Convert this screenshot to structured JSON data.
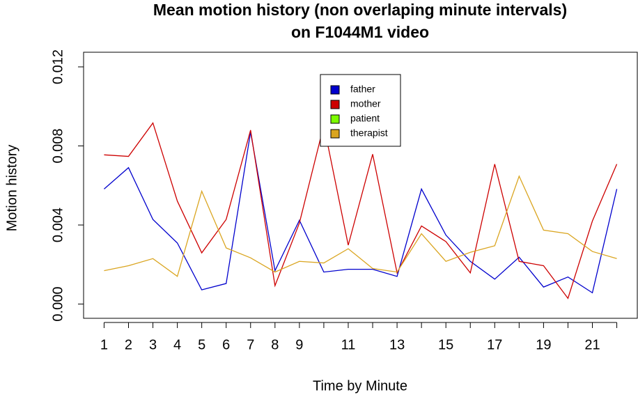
{
  "chart_data": {
    "type": "line",
    "title": [
      "Mean motion history (non overlaping minute intervals)",
      "on F1044M1 video"
    ],
    "x_label": "Time by Minute",
    "y_label": "Motion history",
    "x": [
      1,
      2,
      3,
      4,
      5,
      6,
      7,
      8,
      9,
      10,
      11,
      12,
      13,
      14,
      15,
      16,
      17,
      18,
      19,
      20,
      21,
      22
    ],
    "xlim": [
      0.16,
      22.84
    ],
    "xticks": [
      1,
      2,
      3,
      4,
      5,
      6,
      7,
      8,
      9,
      11,
      13,
      15,
      17,
      19,
      21
    ],
    "ylim": [
      -0.00072,
      0.01274
    ],
    "yticks": [
      {
        "value": 0,
        "label": "0.000"
      },
      {
        "value": 0.004,
        "label": "0.004"
      },
      {
        "value": 0.008,
        "label": "0.008"
      },
      {
        "value": 0.012,
        "label": "0.012"
      }
    ],
    "legend_position": "top",
    "series": [
      {
        "name": "father",
        "color": "#0000cd",
        "values": [
          0.00582,
          0.0069,
          0.00428,
          0.00309,
          0.00072,
          0.00104,
          0.0087,
          0.00169,
          0.00424,
          0.00162,
          0.00176,
          0.00176,
          0.0014,
          0.00582,
          0.00349,
          0.00216,
          0.00126,
          0.00237,
          0.00086,
          0.00137,
          0.00057,
          0.00582
        ]
      },
      {
        "name": "mother",
        "color": "#cd0000",
        "values": [
          0.00755,
          0.00747,
          0.00916,
          0.00521,
          0.00259,
          0.00428,
          0.0088,
          0.00093,
          0.0041,
          0.00905,
          0.00298,
          0.00758,
          0.00158,
          0.00395,
          0.00316,
          0.00158,
          0.00708,
          0.00216,
          0.00194,
          0.00029,
          0.0042,
          0.00708
        ]
      },
      {
        "name": "patient",
        "color": "#7cfc00",
        "values": [
          null,
          null,
          null,
          null,
          null,
          null,
          null,
          null,
          null,
          null,
          null,
          null,
          null,
          null,
          null,
          null,
          null,
          null,
          null,
          null,
          null,
          null
        ]
      },
      {
        "name": "therapist",
        "color": "#daa520",
        "values": [
          0.00169,
          0.00194,
          0.0023,
          0.0014,
          0.00571,
          0.00284,
          0.00234,
          0.00162,
          0.00216,
          0.00208,
          0.0028,
          0.0018,
          0.00162,
          0.00356,
          0.00216,
          0.00262,
          0.00295,
          0.00647,
          0.00374,
          0.00356,
          0.00266,
          0.0023
        ]
      }
    ]
  }
}
